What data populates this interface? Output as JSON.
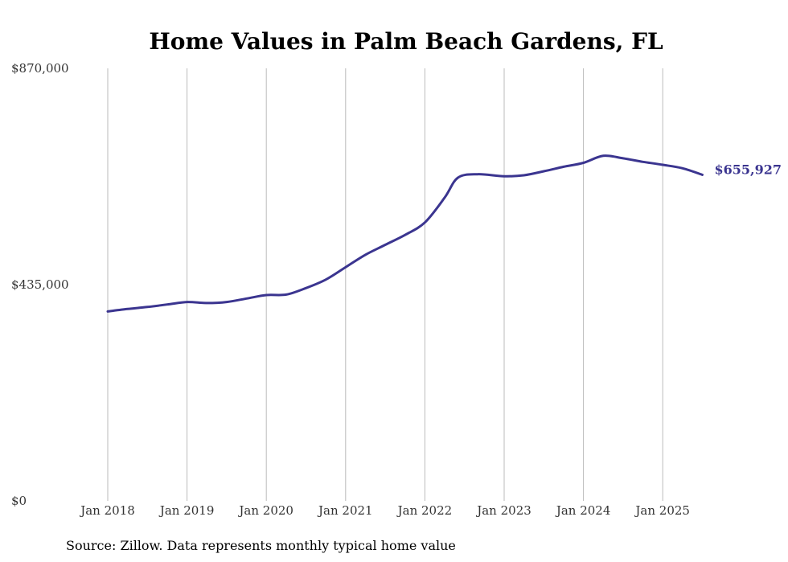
{
  "chart_data": {
    "type": "line",
    "title": "Home Values in Palm Beach Gardens, FL",
    "source": "Source: Zillow. Data represents monthly typical home value",
    "ylim": [
      0,
      870000
    ],
    "yticks": [
      {
        "value": 0,
        "label": "$0"
      },
      {
        "value": 435000,
        "label": "$435,000"
      },
      {
        "value": 870000,
        "label": "$870,000"
      }
    ],
    "xticks": [
      {
        "value": "2018-01",
        "label": "Jan 2018"
      },
      {
        "value": "2019-01",
        "label": "Jan 2019"
      },
      {
        "value": "2020-01",
        "label": "Jan 2020"
      },
      {
        "value": "2021-01",
        "label": "Jan 2021"
      },
      {
        "value": "2022-01",
        "label": "Jan 2022"
      },
      {
        "value": "2023-01",
        "label": "Jan 2023"
      },
      {
        "value": "2024-01",
        "label": "Jan 2024"
      },
      {
        "value": "2025-01",
        "label": "Jan 2025"
      }
    ],
    "xlim": [
      "2018-01",
      "2025-07"
    ],
    "grid": {
      "vertical": true,
      "horizontal": false
    },
    "line_color": "#3b3590",
    "end_label": "$655,927",
    "series": [
      {
        "x": [
          "2018-01",
          "2018-04",
          "2018-07",
          "2018-10",
          "2019-01",
          "2019-04",
          "2019-07",
          "2019-10",
          "2020-01",
          "2020-04",
          "2020-07",
          "2020-10",
          "2021-01",
          "2021-04",
          "2021-07",
          "2021-10",
          "2022-01",
          "2022-04",
          "2022-06",
          "2022-09",
          "2023-01",
          "2023-04",
          "2023-07",
          "2023-10",
          "2024-01",
          "2024-04",
          "2024-07",
          "2024-10",
          "2025-01",
          "2025-04",
          "2025-07"
        ],
        "values": [
          381000,
          386000,
          390000,
          395000,
          400000,
          398000,
          400000,
          407000,
          414000,
          415000,
          428000,
          445000,
          470000,
          495000,
          515000,
          535000,
          560000,
          610000,
          650000,
          657000,
          653000,
          655000,
          663000,
          672000,
          680000,
          694000,
          689000,
          682000,
          676000,
          669000,
          655927
        ]
      }
    ]
  }
}
